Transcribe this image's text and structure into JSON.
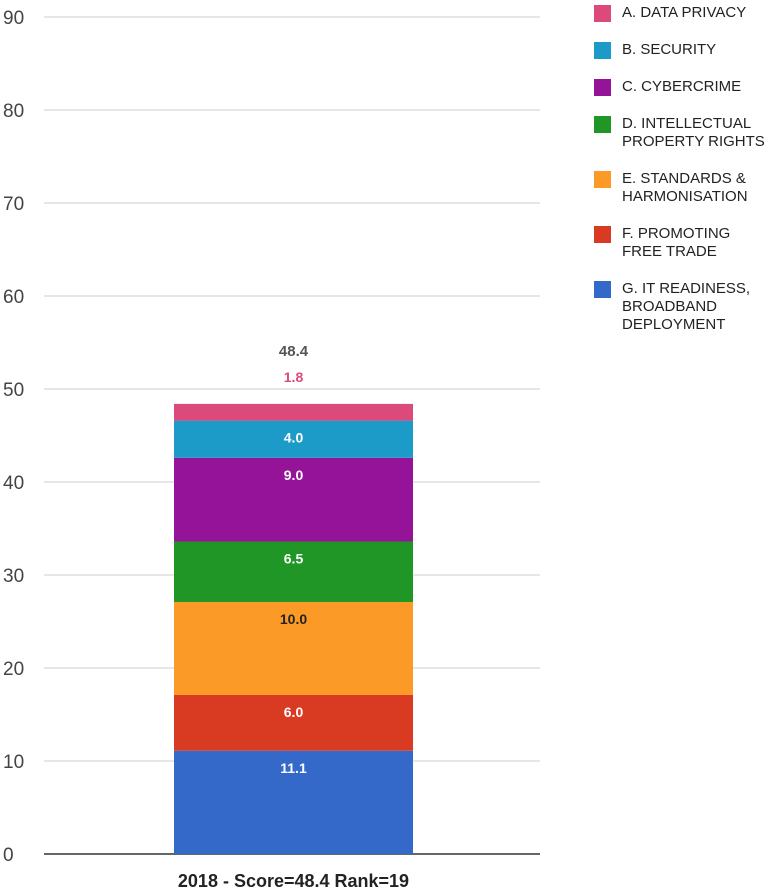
{
  "chart_data": {
    "type": "bar",
    "stacked": true,
    "categories": [
      "2018 - Score=48.4 Rank=19"
    ],
    "ylim": [
      0,
      90
    ],
    "yticks": [
      0,
      10,
      20,
      30,
      40,
      50,
      60,
      70,
      80,
      90
    ],
    "grid": true,
    "legend_position": "right",
    "total_label": "48.4",
    "series": [
      {
        "name": "G. IT READINESS, BROADBAND DEPLOYMENT",
        "values": [
          11.1
        ],
        "label": "11.1",
        "color": "#3569c9",
        "label_color": "#ffffff"
      },
      {
        "name": "F. PROMOTING FREE TRADE",
        "values": [
          6.0
        ],
        "label": "6.0",
        "color": "#d83b22",
        "label_color": "#ffffff"
      },
      {
        "name": "E. STANDARDS & HARMONISATION",
        "values": [
          10.0
        ],
        "label": "10.0",
        "color": "#fb9a26",
        "label_color": "#222222"
      },
      {
        "name": "D. INTELLECTUAL PROPERTY RIGHTS",
        "values": [
          6.5
        ],
        "label": "6.5",
        "color": "#1f9625",
        "label_color": "#ffffff"
      },
      {
        "name": "C. CYBERCRIME",
        "values": [
          9.0
        ],
        "label": "9.0",
        "color": "#951399",
        "label_color": "#ffffff"
      },
      {
        "name": "B. SECURITY",
        "values": [
          4.0
        ],
        "label": "4.0",
        "color": "#1c9bc8",
        "label_color": "#ffffff"
      },
      {
        "name": "A. DATA PRIVACY",
        "values": [
          1.8
        ],
        "label": "1.8",
        "color": "#dc4a7c",
        "label_color": "#dc4a7c"
      }
    ]
  },
  "legend": {
    "items": [
      {
        "label": "A. DATA PRIVACY",
        "color": "#dc4a7c",
        "icon": "square-swatch-icon"
      },
      {
        "label": "B. SECURITY",
        "color": "#1c9bc8",
        "icon": "square-swatch-icon"
      },
      {
        "label": "C. CYBERCRIME",
        "color": "#951399",
        "icon": "square-swatch-icon"
      },
      {
        "label": "D. INTELLECTUAL PROPERTY RIGHTS",
        "color": "#1f9625",
        "icon": "square-swatch-icon"
      },
      {
        "label": "E. STANDARDS & HARMONISATION",
        "color": "#fb9a26",
        "icon": "square-swatch-icon"
      },
      {
        "label": "F. PROMOTING FREE TRADE",
        "color": "#d83b22",
        "icon": "square-swatch-icon"
      },
      {
        "label": "G. IT READINESS, BROADBAND DEPLOYMENT",
        "color": "#3569c9",
        "icon": "square-swatch-icon"
      }
    ]
  }
}
